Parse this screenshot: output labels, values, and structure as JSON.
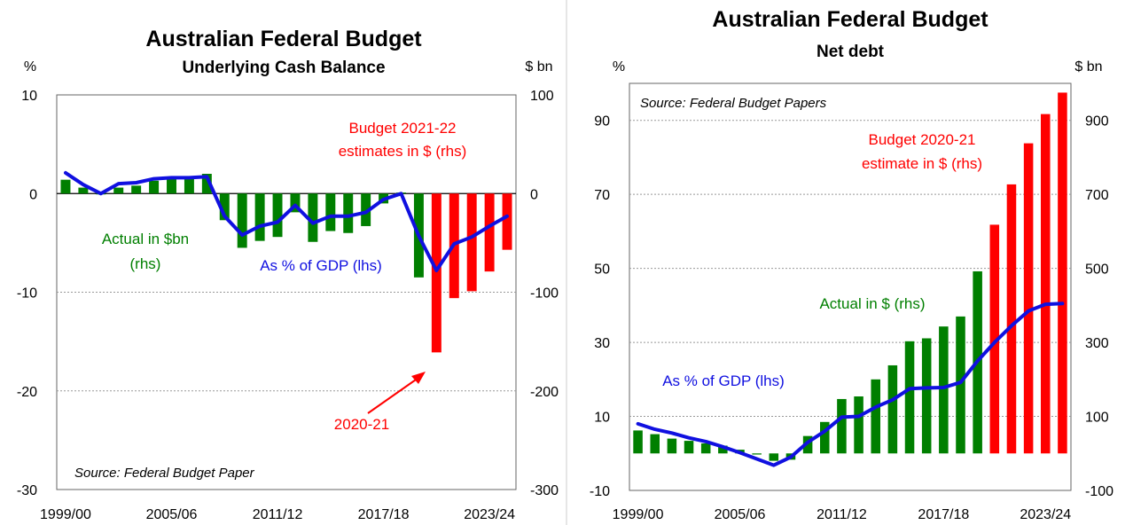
{
  "chart_data": [
    {
      "type": "bar",
      "title": "Australian Federal Budget",
      "subtitle": "Underlying Cash Balance",
      "left_unit": "%",
      "right_unit": "$ bn",
      "left_ticks": [
        "10",
        "0",
        "-10",
        "-20",
        "-30"
      ],
      "right_ticks": [
        "100",
        "0",
        "-100",
        "-200",
        "-300"
      ],
      "x_ticks": [
        "1999/00",
        "2005/06",
        "2011/12",
        "2017/18",
        "2023/24"
      ],
      "ylim_lhs": [
        -30,
        10
      ],
      "ylim_rhs": [
        -300,
        100
      ],
      "grid": true,
      "categories": [
        "1999/00",
        "2000/01",
        "2001/02",
        "2002/03",
        "2003/04",
        "2004/05",
        "2005/06",
        "2006/07",
        "2007/08",
        "2008/09",
        "2009/10",
        "2010/11",
        "2011/12",
        "2012/13",
        "2013/14",
        "2014/15",
        "2015/16",
        "2016/17",
        "2017/18",
        "2018/19",
        "2019/20",
        "2020-21",
        "2021/22",
        "2022/23",
        "2023/24",
        "2024/25"
      ],
      "series": [
        {
          "name": "Actual in $bn (rhs)",
          "axis": "rhs",
          "color": "#007f00",
          "values": [
            14,
            6,
            0,
            6,
            8,
            13,
            16,
            16,
            20,
            -27,
            -55,
            -48,
            -44,
            -19,
            -49,
            -38,
            -40,
            -33,
            -10,
            1,
            -85,
            null,
            null,
            null,
            null,
            null
          ]
        },
        {
          "name": "Budget 2021-22 estimates in $ (rhs)",
          "axis": "rhs",
          "color": "#ff0000",
          "values": [
            null,
            null,
            null,
            null,
            null,
            null,
            null,
            null,
            null,
            null,
            null,
            null,
            null,
            null,
            null,
            null,
            null,
            null,
            null,
            null,
            null,
            -161,
            -106,
            -99,
            -79,
            -57
          ]
        },
        {
          "name": "As % of GDP (lhs)",
          "axis": "lhs",
          "type": "line",
          "color": "#1010e0",
          "values": [
            2.1,
            0.9,
            0.0,
            1.0,
            1.1,
            1.5,
            1.6,
            1.6,
            1.7,
            -2.3,
            -4.2,
            -3.3,
            -2.9,
            -1.2,
            -3.0,
            -2.3,
            -2.3,
            -1.9,
            -0.6,
            0.0,
            -4.3,
            -7.8,
            -5.1,
            -4.4,
            -3.3,
            -2.3
          ]
        }
      ],
      "annotations": [
        "Budget 2021-22",
        "estimates in $ (rhs)",
        "Actual in $bn",
        "(rhs)",
        "As % of GDP (lhs)",
        "2020-21"
      ],
      "source": "Source: Federal Budget Paper"
    },
    {
      "type": "bar",
      "title": "Australian Federal Budget",
      "subtitle": "Net debt",
      "left_unit": "%",
      "right_unit": "$ bn",
      "left_ticks": [
        "90",
        "70",
        "50",
        "30",
        "10",
        "-10"
      ],
      "right_ticks": [
        "900",
        "700",
        "500",
        "300",
        "100",
        "-100"
      ],
      "x_ticks": [
        "1999/00",
        "2005/06",
        "2011/12",
        "2017/18",
        "2023/24"
      ],
      "ylim_lhs": [
        -10,
        100
      ],
      "ylim_rhs": [
        -100,
        1000
      ],
      "grid": true,
      "categories": [
        "1999/00",
        "2000/01",
        "2001/02",
        "2002/03",
        "2003/04",
        "2004/05",
        "2005/06",
        "2006/07",
        "2007/08",
        "2008/09",
        "2009/10",
        "2010/11",
        "2011/12",
        "2012/13",
        "2013/14",
        "2014/15",
        "2015/16",
        "2016/17",
        "2017/18",
        "2018/19",
        "2019/20",
        "2020/21",
        "2021/22",
        "2022/23",
        "2023/24",
        "2024/25"
      ],
      "series": [
        {
          "name": "Actual in $ (rhs)",
          "axis": "rhs",
          "color": "#007f00",
          "values": [
            62,
            52,
            40,
            34,
            27,
            21,
            10,
            -3,
            -20,
            -17,
            47,
            85,
            147,
            154,
            200,
            238,
            303,
            311,
            343,
            370,
            492,
            null,
            null,
            null,
            null,
            null
          ]
        },
        {
          "name": "Budget 2020-21 estimate in $ (rhs)",
          "axis": "rhs",
          "color": "#ff0000",
          "values": [
            null,
            null,
            null,
            null,
            null,
            null,
            null,
            null,
            null,
            null,
            null,
            null,
            null,
            null,
            null,
            null,
            null,
            null,
            null,
            null,
            null,
            618,
            727,
            838,
            917,
            975
          ]
        },
        {
          "name": "As % of GDP (lhs)",
          "axis": "lhs",
          "type": "line",
          "color": "#1010e0",
          "values": [
            8.0,
            6.5,
            5.5,
            4.2,
            3.2,
            1.8,
            0.2,
            -1.5,
            -3.2,
            -1.0,
            3.0,
            6.0,
            9.8,
            10.0,
            12.5,
            14.5,
            17.5,
            17.7,
            17.8,
            19.2,
            25.0,
            30.0,
            34.5,
            38.5,
            40.3,
            40.5
          ]
        }
      ],
      "annotations": [
        "Source: Federal Budget Papers",
        "Budget 2020-21",
        "estimate in $ (rhs)",
        "Actual  in $ (rhs)",
        "As % of GDP (lhs)"
      ]
    }
  ]
}
